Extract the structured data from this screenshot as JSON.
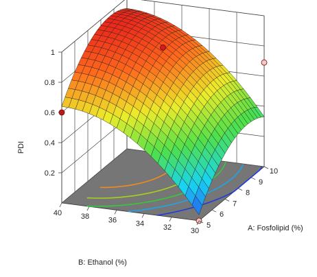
{
  "chart_data": {
    "type": "surface3d",
    "title": "",
    "zlabel": "PDI",
    "xlabel": "A: Fosfolipid (%)",
    "ylabel": "B: Ethanol (%)",
    "x_ticks": [
      "5",
      "6",
      "7",
      "8",
      "9",
      "10"
    ],
    "y_ticks": [
      "30",
      "32",
      "34",
      "36",
      "38",
      "40"
    ],
    "z_ticks": [
      "0.2",
      "0.4",
      "0.6",
      "0.8",
      "1"
    ],
    "xlim": [
      5,
      10
    ],
    "ylim": [
      30,
      40
    ],
    "zlim": [
      0,
      1
    ],
    "surface_model": {
      "equation": "PDI = 0.95 - 0.22*(x-8.2)^2/9 - 0.6*((40-y)/10)^2 + 0.06*(x-7.5)/2.5",
      "grid": "20 x 20 mesh"
    },
    "design_points": [
      {
        "x": 5,
        "y": 30,
        "z": 0.0
      },
      {
        "x": 10,
        "y": 30,
        "z": 0.69
      },
      {
        "x": 5,
        "y": 40,
        "z": 0.6
      },
      {
        "x": 7.5,
        "y": 35,
        "z": 0.91
      }
    ],
    "contour_colors": [
      "#1f3bd9",
      "#1ea5e6",
      "#37c83c",
      "#a6d21e",
      "#f08c1e"
    ],
    "colormap": [
      "#2a3cf0",
      "#18d4f2",
      "#4fe04a",
      "#ecec2a",
      "#ff6a1c",
      "#e81a1a"
    ]
  }
}
